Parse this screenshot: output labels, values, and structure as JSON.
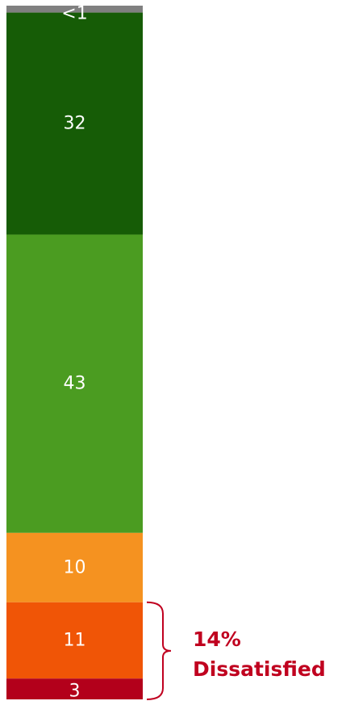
{
  "chart_data": {
    "type": "bar",
    "stacked": true,
    "orientation": "vertical",
    "unit": "%",
    "ylim": [
      0,
      100
    ],
    "grid": false,
    "segments": [
      {
        "value": 0.5,
        "label": "<1",
        "color": "#808080"
      },
      {
        "value": 32,
        "label": "32",
        "color": "#165c06"
      },
      {
        "value": 43,
        "label": "43",
        "color": "#4b9c21"
      },
      {
        "value": 10,
        "label": "10",
        "color": "#f59220"
      },
      {
        "value": 11,
        "label": "11",
        "color": "#f05506"
      },
      {
        "value": 3,
        "label": "3",
        "color": "#b3001b"
      }
    ],
    "annotation": {
      "line1": "14%",
      "line2": "Dissatisfied",
      "color": "#c0001f",
      "bracket_color": "#c0001f",
      "spans_segments": [
        4,
        5
      ]
    }
  }
}
